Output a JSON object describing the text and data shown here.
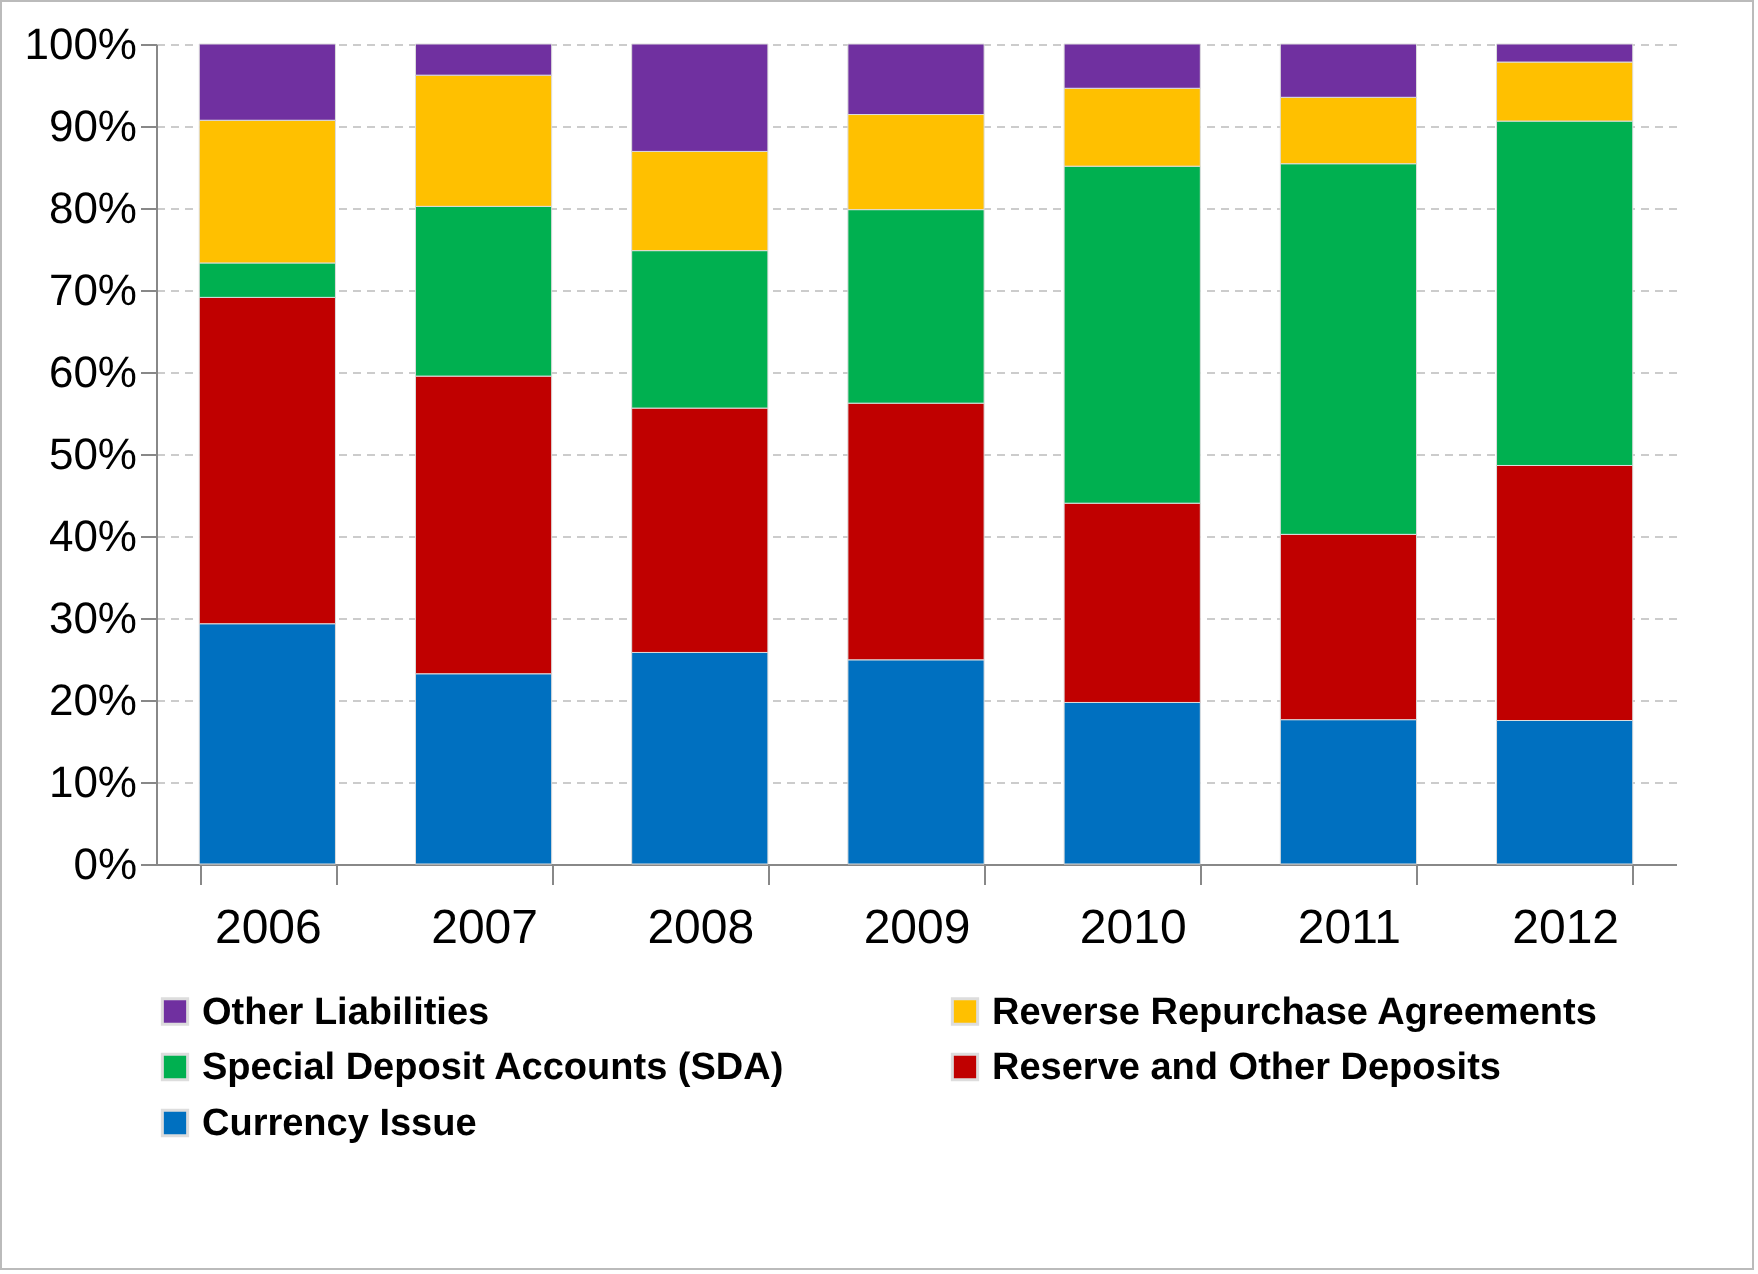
{
  "chart_data": {
    "type": "bar",
    "stacked": true,
    "categories": [
      "2006",
      "2007",
      "2008",
      "2009",
      "2010",
      "2011",
      "2012"
    ],
    "series": [
      {
        "name": "Currency Issue",
        "color": "#0070c0",
        "values": [
          29.3,
          23.2,
          25.8,
          24.9,
          19.7,
          17.6,
          17.5
        ]
      },
      {
        "name": "Reserve and Other Deposits",
        "color": "#c00000",
        "values": [
          39.8,
          36.3,
          29.8,
          31.3,
          24.3,
          22.6,
          31.1
        ]
      },
      {
        "name": "Special Deposit Accounts (SDA)",
        "color": "#00b050",
        "values": [
          4.2,
          20.7,
          19.2,
          23.6,
          41.1,
          45.2,
          42.0
        ]
      },
      {
        "name": "Reverse Repurchase Agreements",
        "color": "#ffc000",
        "values": [
          17.4,
          16.0,
          12.1,
          11.6,
          9.5,
          8.1,
          7.2
        ]
      },
      {
        "name": "Other Liabilities",
        "color": "#7030a0",
        "values": [
          9.3,
          3.8,
          13.1,
          8.6,
          5.4,
          6.5,
          2.2
        ]
      }
    ],
    "ylim": [
      0,
      100
    ],
    "yticks": [
      {
        "value": 0,
        "label": "0%"
      },
      {
        "value": 10,
        "label": "10%"
      },
      {
        "value": 20,
        "label": "20%"
      },
      {
        "value": 30,
        "label": "30%"
      },
      {
        "value": 40,
        "label": "40%"
      },
      {
        "value": 50,
        "label": "50%"
      },
      {
        "value": 60,
        "label": "60%"
      },
      {
        "value": 70,
        "label": "70%"
      },
      {
        "value": 80,
        "label": "80%"
      },
      {
        "value": 90,
        "label": "90%"
      },
      {
        "value": 100,
        "label": "100%"
      }
    ],
    "grid": "y",
    "legend": "bottom"
  }
}
